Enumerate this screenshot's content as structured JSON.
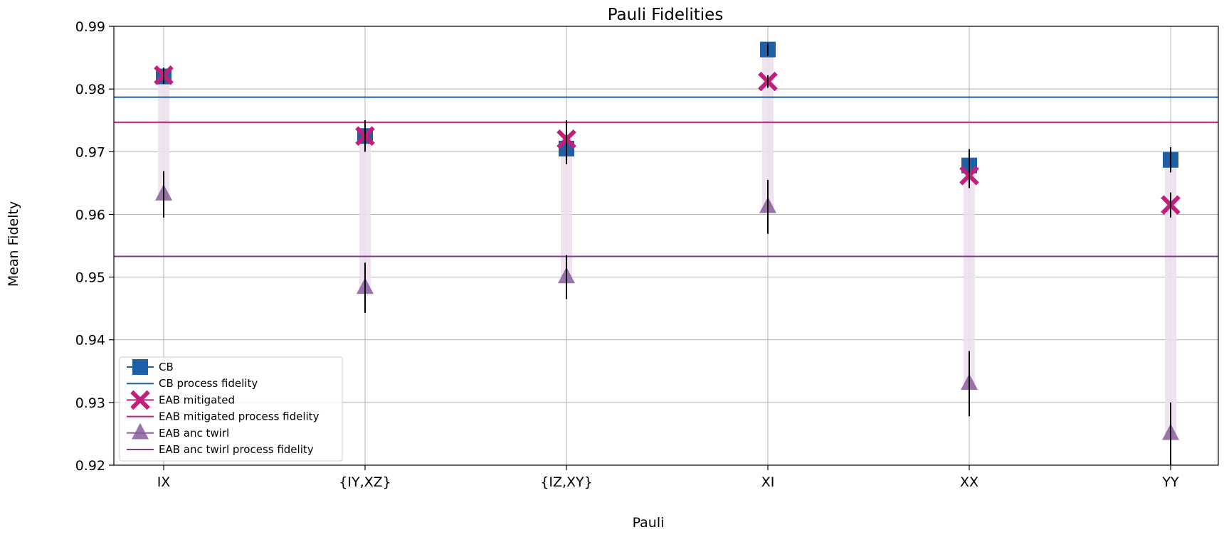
{
  "chart_data": {
    "type": "scatter",
    "title": "Pauli Fidelities",
    "xlabel": "Pauli",
    "ylabel": "Mean Fidelty",
    "categories": [
      "IX",
      "{IY,XZ}",
      "{IZ,XY}",
      "XI",
      "XX",
      "YY"
    ],
    "ylim": [
      0.92,
      0.99
    ],
    "yticks": [
      "0.92",
      "0.93",
      "0.94",
      "0.95",
      "0.96",
      "0.97",
      "0.98",
      "0.99"
    ],
    "grid": true,
    "legend_position": "lower-left",
    "series": [
      {
        "name": "CB",
        "marker": "square",
        "color": "#1f5fa6",
        "values": [
          0.982,
          0.9725,
          0.9705,
          0.9863,
          0.9678,
          0.9687
        ],
        "errors": [
          0.0012,
          0.0025,
          0.0025,
          0.001,
          0.0026,
          0.002
        ]
      },
      {
        "name": "EAB mitigated",
        "marker": "x",
        "color": "#c0207a",
        "values": [
          0.9822,
          0.9725,
          0.972,
          0.9812,
          0.9662,
          0.9615
        ],
        "errors": [
          0.0012,
          0.0025,
          0.003,
          0.001,
          0.002,
          0.002
        ]
      },
      {
        "name": "EAB anc twirl",
        "marker": "triangle",
        "color": "#8a5a9e",
        "values": [
          0.9632,
          0.9483,
          0.95,
          0.9612,
          0.933,
          0.925
        ],
        "errors": [
          0.0037,
          0.004,
          0.0035,
          0.0043,
          0.0052,
          0.005
        ]
      }
    ],
    "reference_lines": [
      {
        "name": "CB process fidelity",
        "value": 0.9787,
        "color": "#1f5fa6"
      },
      {
        "name": "EAB mitigated process fidelity",
        "value": 0.9747,
        "color": "#c0207a"
      },
      {
        "name": "EAB anc twirl process fidelity",
        "value": 0.9533,
        "color": "#7a3f8c"
      }
    ],
    "band_color": "#ede0ee",
    "legend": [
      {
        "label": "CB",
        "kind": "marker",
        "marker": "square",
        "color": "#1f5fa6"
      },
      {
        "label": "CB process fidelity",
        "kind": "line",
        "color": "#1f5fa6"
      },
      {
        "label": "EAB mitigated",
        "kind": "marker",
        "marker": "x",
        "color": "#c0207a"
      },
      {
        "label": "EAB mitigated process fidelity",
        "kind": "line",
        "color": "#c0207a"
      },
      {
        "label": "EAB anc twirl",
        "kind": "marker",
        "marker": "triangle",
        "color": "#8a5a9e"
      },
      {
        "label": "EAB anc twirl process fidelity",
        "kind": "line",
        "color": "#7a3f8c"
      }
    ]
  }
}
